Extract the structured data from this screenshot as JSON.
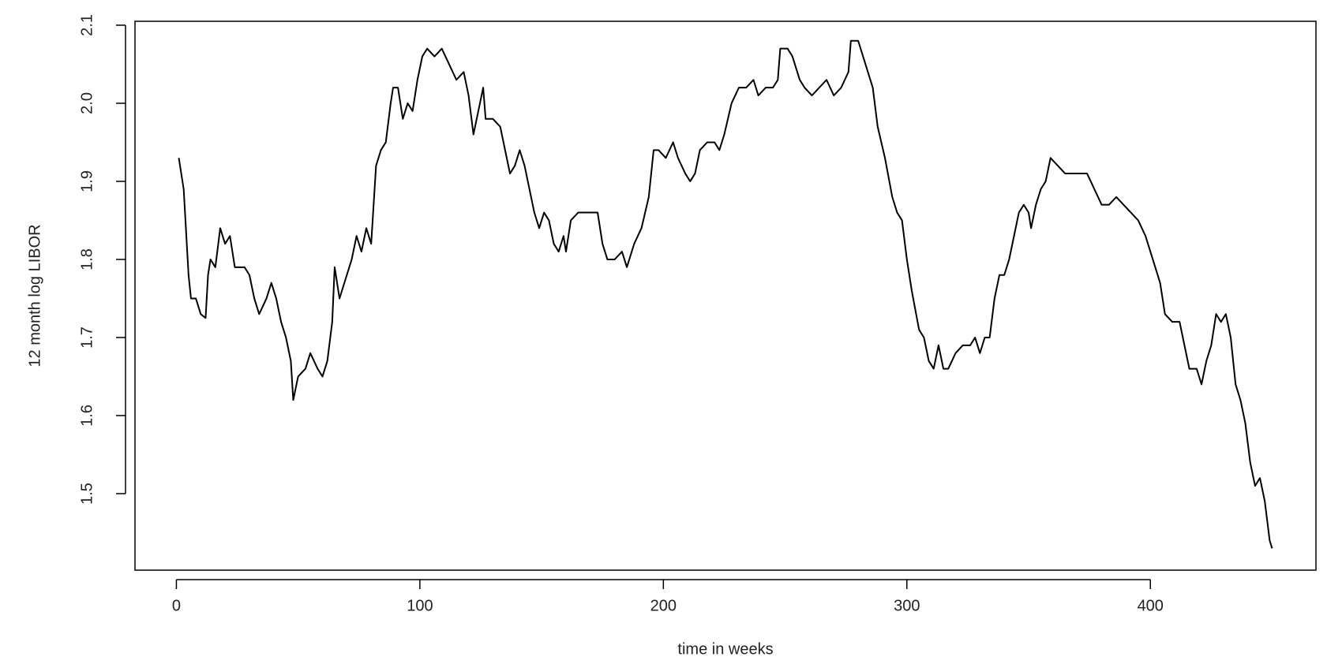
{
  "chart_data": {
    "type": "line",
    "x_label": "time in weeks",
    "y_label": "12 month log LIBOR",
    "color": "#000000",
    "x": [
      1,
      3,
      5,
      6,
      8,
      10,
      12,
      13,
      14,
      16,
      18,
      20,
      22,
      24,
      28,
      30,
      32,
      34,
      37,
      39,
      41,
      43,
      45,
      47,
      48,
      50,
      53,
      55,
      58,
      60,
      62,
      64,
      65,
      67,
      70,
      72,
      74,
      76,
      78,
      80,
      82,
      84,
      86,
      88,
      89,
      91,
      93,
      95,
      97,
      99,
      101,
      103,
      106,
      109,
      112,
      115,
      118,
      120,
      122,
      124,
      126,
      127,
      130,
      133,
      135,
      137,
      139,
      141,
      143,
      145,
      147,
      149,
      151,
      153,
      155,
      157,
      159,
      160,
      162,
      165,
      170,
      173,
      175,
      177,
      180,
      183,
      185,
      188,
      191,
      194,
      196,
      198,
      201,
      204,
      206,
      209,
      211,
      213,
      215,
      218,
      221,
      223,
      225,
      228,
      231,
      234,
      237,
      239,
      242,
      245,
      247,
      248,
      251,
      253,
      256,
      258,
      261,
      264,
      267,
      270,
      273,
      276,
      277,
      280,
      283,
      286,
      288,
      291,
      294,
      296,
      298,
      300,
      302,
      305,
      307,
      309,
      311,
      313,
      315,
      317,
      320,
      323,
      326,
      328,
      330,
      332,
      334,
      336,
      338,
      340,
      342,
      344,
      346,
      348,
      350,
      351,
      353,
      355,
      357,
      359,
      362,
      365,
      368,
      371,
      374,
      377,
      380,
      383,
      386,
      389,
      392,
      395,
      398,
      401,
      404,
      406,
      409,
      412,
      414,
      416,
      419,
      421,
      423,
      425,
      427,
      429,
      431,
      433,
      435,
      437,
      439,
      441,
      443,
      445,
      447,
      449,
      450
    ],
    "values": [
      1.93,
      1.89,
      1.78,
      1.75,
      1.75,
      1.73,
      1.725,
      1.78,
      1.8,
      1.79,
      1.84,
      1.82,
      1.83,
      1.79,
      1.79,
      1.78,
      1.75,
      1.73,
      1.75,
      1.77,
      1.75,
      1.72,
      1.7,
      1.67,
      1.62,
      1.65,
      1.66,
      1.68,
      1.66,
      1.65,
      1.67,
      1.72,
      1.79,
      1.75,
      1.78,
      1.8,
      1.83,
      1.81,
      1.84,
      1.82,
      1.92,
      1.94,
      1.95,
      2.0,
      2.02,
      2.02,
      1.98,
      2.0,
      1.99,
      2.03,
      2.06,
      2.07,
      2.06,
      2.07,
      2.05,
      2.03,
      2.04,
      2.01,
      1.96,
      1.99,
      2.02,
      1.98,
      1.98,
      1.97,
      1.94,
      1.91,
      1.92,
      1.94,
      1.92,
      1.89,
      1.86,
      1.84,
      1.86,
      1.85,
      1.82,
      1.81,
      1.83,
      1.81,
      1.85,
      1.86,
      1.86,
      1.86,
      1.82,
      1.8,
      1.8,
      1.81,
      1.79,
      1.82,
      1.84,
      1.88,
      1.94,
      1.94,
      1.93,
      1.95,
      1.93,
      1.91,
      1.9,
      1.91,
      1.94,
      1.95,
      1.95,
      1.94,
      1.96,
      2.0,
      2.02,
      2.02,
      2.03,
      2.01,
      2.02,
      2.02,
      2.03,
      2.07,
      2.07,
      2.06,
      2.03,
      2.02,
      2.01,
      2.02,
      2.03,
      2.01,
      2.02,
      2.04,
      2.08,
      2.08,
      2.05,
      2.02,
      1.97,
      1.93,
      1.88,
      1.86,
      1.85,
      1.8,
      1.76,
      1.71,
      1.7,
      1.67,
      1.66,
      1.69,
      1.66,
      1.66,
      1.68,
      1.69,
      1.69,
      1.7,
      1.68,
      1.7,
      1.7,
      1.75,
      1.78,
      1.78,
      1.8,
      1.83,
      1.86,
      1.87,
      1.86,
      1.84,
      1.87,
      1.89,
      1.9,
      1.93,
      1.92,
      1.91,
      1.91,
      1.91,
      1.91,
      1.89,
      1.87,
      1.87,
      1.88,
      1.87,
      1.86,
      1.85,
      1.83,
      1.8,
      1.77,
      1.73,
      1.72,
      1.72,
      1.69,
      1.66,
      1.66,
      1.64,
      1.67,
      1.69,
      1.73,
      1.72,
      1.73,
      1.7,
      1.64,
      1.62,
      1.59,
      1.54,
      1.51,
      1.52,
      1.49,
      1.44,
      1.43
    ],
    "xlim": [
      -17,
      468
    ],
    "ylim": [
      1.402,
      2.105
    ],
    "xticks": [
      0,
      100,
      200,
      300,
      400
    ],
    "yticks": [
      1.5,
      1.6,
      1.7,
      1.8,
      1.9,
      {
        "value": 2,
        "label": "2.0"
      },
      2.1
    ]
  }
}
